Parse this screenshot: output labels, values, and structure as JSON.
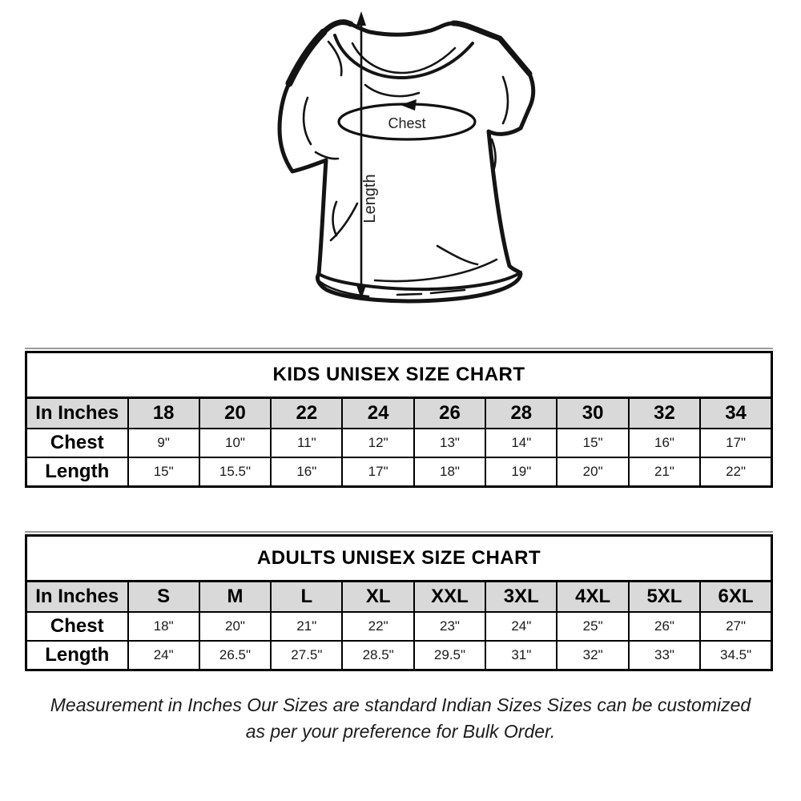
{
  "diagram": {
    "chest_label": "Chest",
    "length_label": "Length"
  },
  "chart_data": [
    {
      "type": "table",
      "title": "KIDS UNISEX SIZE CHART",
      "columns": [
        "In Inches",
        "18",
        "20",
        "22",
        "24",
        "26",
        "28",
        "30",
        "32",
        "34"
      ],
      "rows": [
        [
          "Chest",
          "9\"",
          "10\"",
          "11\"",
          "12\"",
          "13\"",
          "14\"",
          "15\"",
          "16\"",
          "17\""
        ],
        [
          "Length",
          "15\"",
          "15.5\"",
          "16\"",
          "17\"",
          "18\"",
          "19\"",
          "20\"",
          "21\"",
          "22\""
        ]
      ]
    },
    {
      "type": "table",
      "title": "ADULTS UNISEX SIZE CHART",
      "columns": [
        "In Inches",
        "S",
        "M",
        "L",
        "XL",
        "XXL",
        "3XL",
        "4XL",
        "5XL",
        "6XL"
      ],
      "rows": [
        [
          "Chest",
          "18\"",
          "20\"",
          "21\"",
          "22\"",
          "23\"",
          "24\"",
          "25\"",
          "26\"",
          "27\""
        ],
        [
          "Length",
          "24\"",
          "26.5\"",
          "27.5\"",
          "28.5\"",
          "29.5\"",
          "31\"",
          "32\"",
          "33\"",
          "34.5\""
        ]
      ]
    }
  ],
  "footer": {
    "line1": "Measurement in Inches Our Sizes are standard Indian Sizes Sizes can be customized",
    "line2": "as per your preference for Bulk Order."
  },
  "colors": {
    "header_bg": "#d9d9d9",
    "border": "#000000",
    "pre_border_line": "#9a9a9a"
  }
}
